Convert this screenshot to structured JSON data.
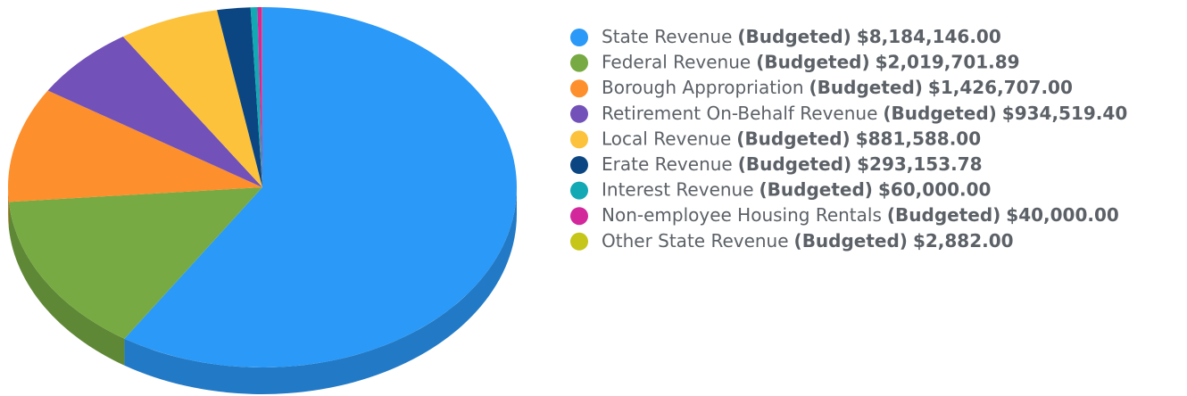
{
  "chart_data": {
    "type": "pie",
    "categories": [
      "State Revenue",
      "Federal Revenue",
      "Borough Appropriation",
      "Retirement On-Behalf Revenue",
      "Local Revenue",
      "Erate Revenue",
      "Interest Revenue",
      "Non-employee Housing Rentals",
      "Other State Revenue"
    ],
    "value_prefix": "(Budgeted)",
    "values": [
      8184146.0,
      2019701.89,
      1426707.0,
      934519.4,
      881588.0,
      293153.78,
      60000.0,
      40000.0,
      2882.0
    ],
    "value_labels": [
      "$8,184,146.00",
      "$2,019,701.89",
      "$1,426,707.00",
      "$934,519.40",
      "$881,588.00",
      "$293,153.78",
      "$60,000.00",
      "$40,000.00",
      "$2,882.00"
    ],
    "colors": [
      "#2b99f7",
      "#77aa43",
      "#fd8f2c",
      "#7251b8",
      "#fdc23c",
      "#0b4682",
      "#12a9b5",
      "#d3279c",
      "#c5c51a"
    ]
  }
}
